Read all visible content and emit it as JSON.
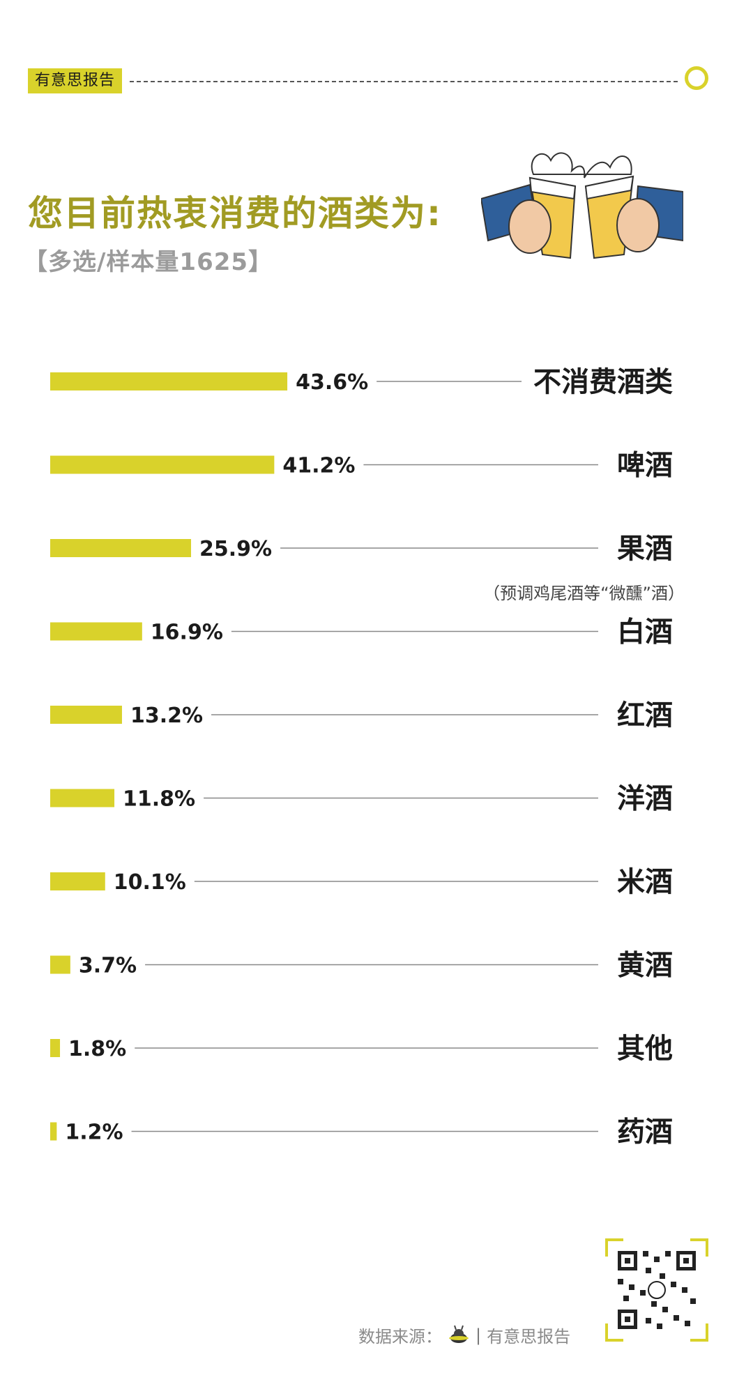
{
  "header": {
    "brand_tag": "有意思报告",
    "accent_color": "#d9d22b"
  },
  "title": "您目前热衷消费的酒类为:",
  "subtitle": "【多选/样本量1625】",
  "chart_data": {
    "type": "bar",
    "orientation": "horizontal",
    "categories": [
      "不消费酒类",
      "啤酒",
      "果酒",
      "白酒",
      "红酒",
      "洋酒",
      "米酒",
      "黄酒",
      "其他",
      "药酒"
    ],
    "values": [
      43.6,
      41.2,
      25.9,
      16.9,
      13.2,
      11.8,
      10.1,
      3.7,
      1.8,
      1.2
    ],
    "value_labels": [
      "43.6%",
      "41.2%",
      "25.9%",
      "16.9%",
      "13.2%",
      "11.8%",
      "10.1%",
      "3.7%",
      "1.8%",
      "1.2%"
    ],
    "unit": "%",
    "bar_color": "#d9d22b",
    "category_notes": {
      "果酒": "（预调鸡尾酒等“微醺”酒）"
    },
    "legend": "none",
    "grid": false
  },
  "footer": {
    "source_label": "数据来源：",
    "source_name": "有意思报告",
    "separator": "|"
  },
  "icons": {
    "top_circle": "circle-icon",
    "illustration": "cheers-beer-icon",
    "source_logo": "alien-logo-icon",
    "qr": "qr-code-icon"
  }
}
